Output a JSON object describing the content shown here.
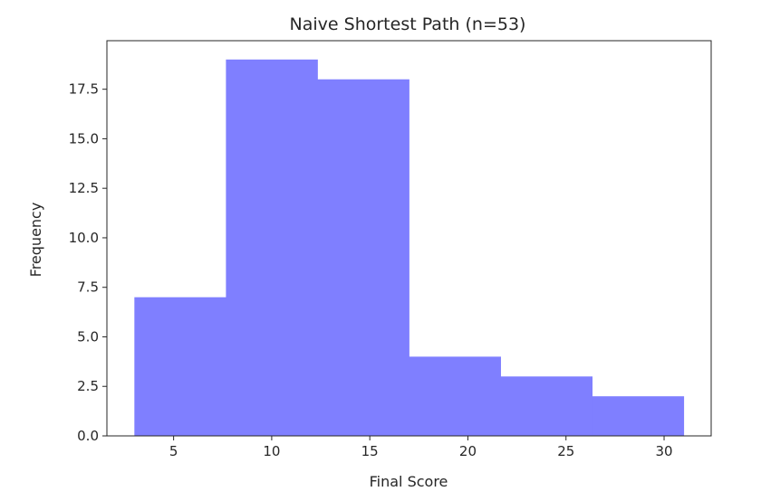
{
  "chart_data": {
    "type": "bar",
    "title": "Naive Shortest Path (n=53)",
    "xlabel": "Final Score",
    "ylabel": "Frequency",
    "bin_edges": [
      3.0,
      7.667,
      12.333,
      17.0,
      21.667,
      26.333,
      31.0
    ],
    "values": [
      7,
      19,
      18,
      4,
      3,
      2
    ],
    "xlim": [
      1.6,
      32.4
    ],
    "ylim": [
      0,
      19.95
    ],
    "xticks": [
      5,
      10,
      15,
      20,
      25,
      30
    ],
    "xtick_labels": [
      "5",
      "10",
      "15",
      "20",
      "25",
      "30"
    ],
    "yticks": [
      0,
      2.5,
      5,
      7.5,
      10,
      12.5,
      15,
      17.5
    ],
    "ytick_labels": [
      "0.0",
      "2.5",
      "5.0",
      "7.5",
      "10.0",
      "12.5",
      "15.0",
      "17.5"
    ],
    "bar_color": "#7f7fff",
    "grid": false,
    "legend": false
  }
}
